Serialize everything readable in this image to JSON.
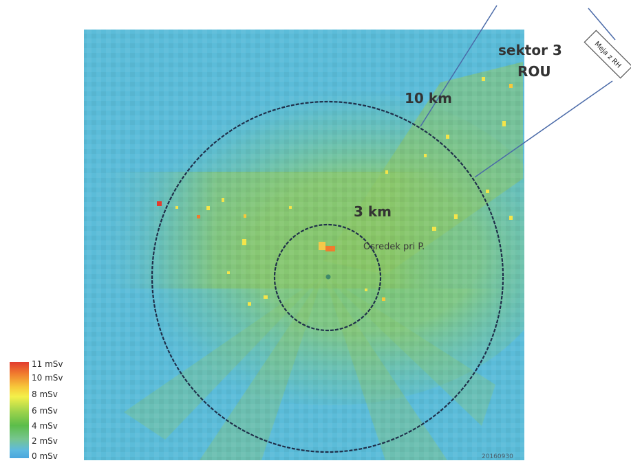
{
  "map": {
    "labels": {
      "sector": "sektor 3",
      "sector_code": "ROU",
      "ring_outer": "10 km",
      "ring_inner": "3 km",
      "center_place": "Osredek pri P.",
      "border_box": "Meja z RH",
      "corner_code": "20160930"
    },
    "colors": {
      "background_field": "#5bbcd9",
      "circle_stroke": "#1f2f4a",
      "sector_line": "#4a6aa8",
      "center_dot": "#3f8a6a"
    }
  },
  "legend": {
    "items": [
      {
        "label": "11 mSv"
      },
      {
        "label": "10 mSv"
      },
      {
        "label": "8 mSv"
      },
      {
        "label": "6 mSv"
      },
      {
        "label": "4 mSv"
      },
      {
        "label": "2 mSv"
      },
      {
        "label": "0 mSv"
      }
    ]
  }
}
